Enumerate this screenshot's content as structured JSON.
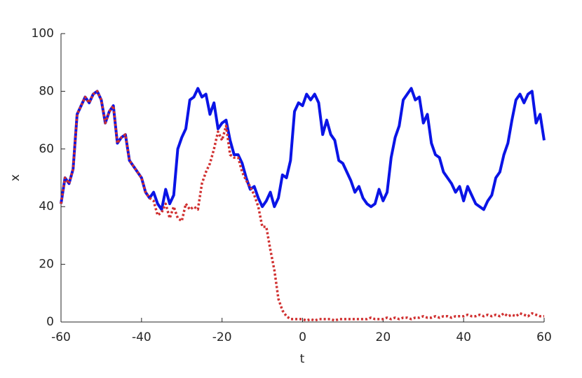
{
  "chart_data": {
    "type": "line",
    "x_label": "t",
    "y_label": "x",
    "x": [
      -60,
      -59,
      -58,
      -57,
      -56,
      -55,
      -54,
      -53,
      -52,
      -51,
      -50,
      -49,
      -48,
      -47,
      -46,
      -45,
      -44,
      -43,
      -42,
      -41,
      -40,
      -39,
      -38,
      -37,
      -36,
      -35,
      -34,
      -33,
      -32,
      -31,
      -30,
      -29,
      -28,
      -27,
      -26,
      -25,
      -24,
      -23,
      -22,
      -21,
      -20,
      -19,
      -18,
      -17,
      -16,
      -15,
      -14,
      -13,
      -12,
      -11,
      -10,
      -9,
      -8,
      -7,
      -6,
      -5,
      -4,
      -3,
      -2,
      -1,
      0,
      1,
      2,
      3,
      4,
      5,
      6,
      7,
      8,
      9,
      10,
      11,
      12,
      13,
      14,
      15,
      16,
      17,
      18,
      19,
      20,
      21,
      22,
      23,
      24,
      25,
      26,
      27,
      28,
      29,
      30,
      31,
      32,
      33,
      34,
      35,
      36,
      37,
      38,
      39,
      40,
      41,
      42,
      43,
      44,
      45,
      46,
      47,
      48,
      49,
      50,
      51,
      52,
      53,
      54,
      55,
      56,
      57,
      58,
      59,
      60
    ],
    "series": [
      {
        "color": "#0a14e6",
        "dash": "solid",
        "values": [
          41,
          50,
          48,
          53,
          72,
          75,
          78,
          76,
          79,
          80,
          77,
          69,
          73,
          75,
          62,
          64,
          65,
          56,
          54,
          52,
          50,
          45,
          43,
          45,
          41,
          39,
          46,
          41,
          44,
          60,
          64,
          67,
          77,
          78,
          81,
          78,
          79,
          72,
          76,
          67,
          69,
          70,
          63,
          58,
          58,
          55,
          50,
          46,
          47,
          43,
          40,
          42,
          45,
          40,
          43,
          51,
          50,
          56,
          73,
          76,
          75,
          79,
          77,
          79,
          76,
          65,
          70,
          65,
          63,
          56,
          55,
          52,
          49,
          45,
          47,
          43,
          41,
          40,
          41,
          46,
          42,
          45,
          57,
          64,
          68,
          77,
          79,
          81,
          77,
          78,
          69,
          72,
          62,
          58,
          57,
          52,
          50,
          48,
          45,
          47,
          42,
          47,
          44,
          41,
          40,
          39,
          42,
          44,
          50,
          52,
          58,
          62,
          70,
          77,
          79,
          76,
          79,
          80,
          69,
          72,
          63
        ]
      },
      {
        "color": "#d03030",
        "dash": "dotted",
        "values": [
          41,
          50,
          48,
          53,
          72,
          75,
          78,
          76,
          79,
          80,
          77,
          69,
          73,
          75,
          62,
          64,
          65,
          56,
          54,
          52,
          50,
          45,
          43,
          42,
          37,
          38,
          41,
          36,
          40,
          36,
          35,
          41,
          39,
          40,
          39,
          48,
          52,
          55,
          60,
          66,
          63,
          68,
          58,
          57,
          57,
          52,
          49,
          47,
          44,
          40,
          33,
          33,
          25,
          18,
          8,
          4,
          2,
          1,
          1,
          1,
          1,
          0.5,
          1,
          0.5,
          1,
          1,
          1,
          1,
          0.5,
          1,
          1,
          1,
          1,
          1,
          1,
          1,
          1,
          1.5,
          1,
          1,
          1,
          1.5,
          1,
          1.5,
          1,
          1.5,
          1.5,
          1,
          1.5,
          1.5,
          2,
          1.5,
          1.5,
          2,
          1.5,
          2,
          2,
          1.5,
          2,
          2,
          2,
          2.5,
          2,
          2,
          2.5,
          2,
          2.5,
          2,
          2.5,
          2,
          3,
          2,
          2.5,
          2,
          3,
          2.5,
          2,
          3,
          2.5,
          2,
          2
        ]
      }
    ],
    "xlim": [
      -60,
      60
    ],
    "xticks": [
      -60,
      -40,
      -20,
      0,
      20,
      40,
      60
    ],
    "ylim": [
      0,
      100
    ],
    "yticks": [
      0,
      20,
      40,
      60,
      80,
      100
    ]
  }
}
